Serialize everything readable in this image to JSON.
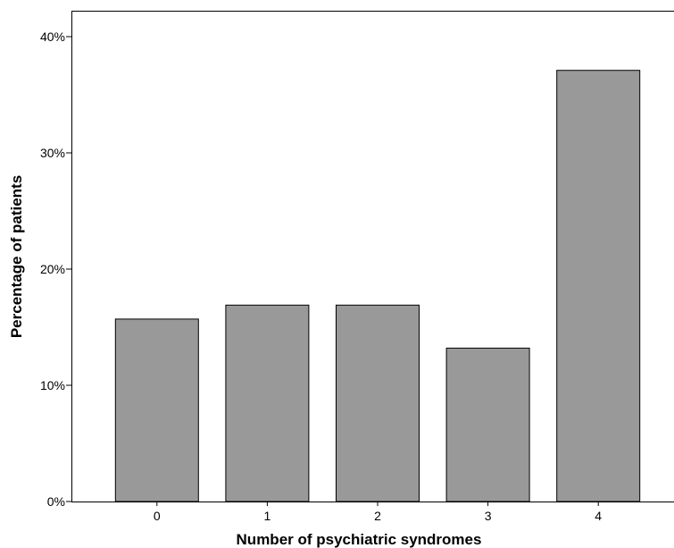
{
  "chart_data": {
    "type": "bar",
    "categories": [
      "0",
      "1",
      "2",
      "3",
      "4"
    ],
    "values": [
      15.7,
      16.9,
      16.9,
      13.2,
      37.1
    ],
    "xlabel": "Number of psychiatric syndromes",
    "ylabel": "Percentage of patients",
    "ylim": [
      0,
      40
    ],
    "yticks": [
      0,
      10,
      20,
      30,
      40
    ],
    "ytick_labels": [
      "0%",
      "10%",
      "20%",
      "30%",
      "40%"
    ],
    "bar_color": "#999999",
    "grid": false,
    "legend": "none"
  }
}
